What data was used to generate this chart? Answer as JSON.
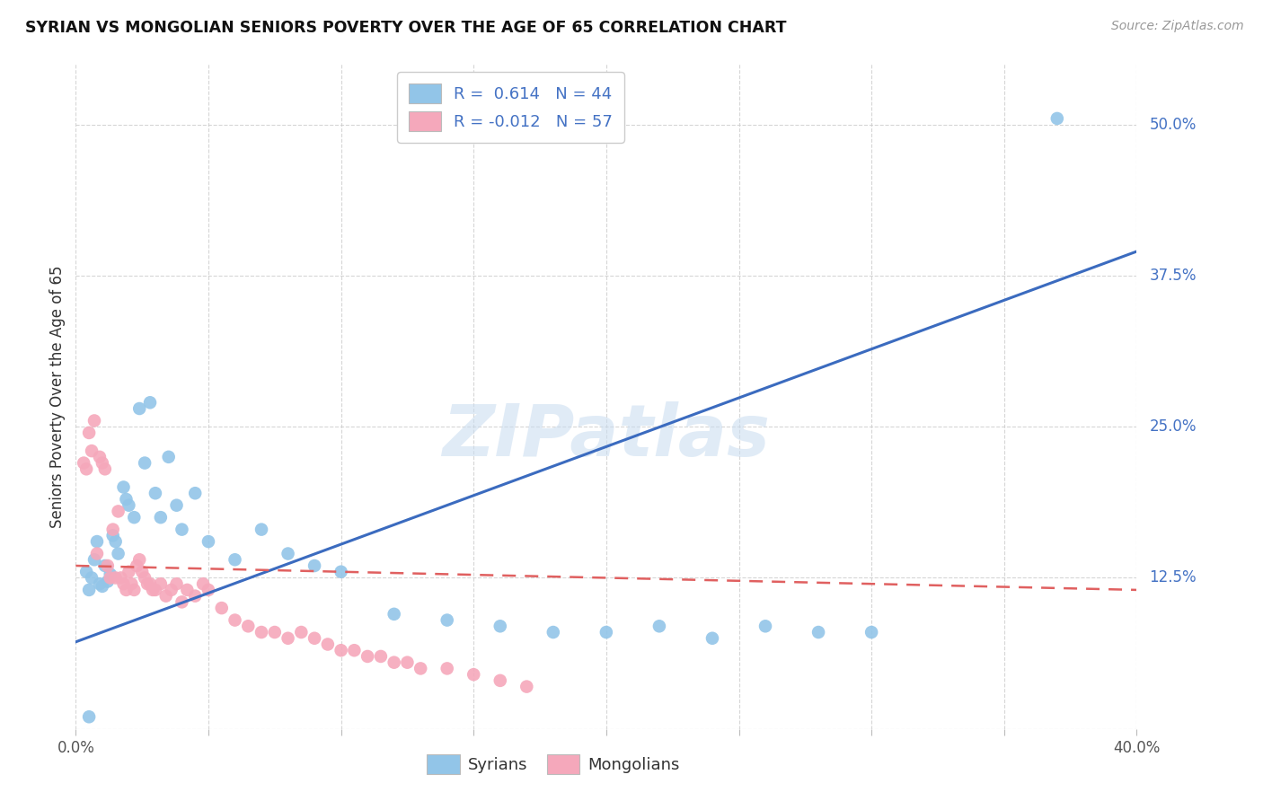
{
  "title": "SYRIAN VS MONGOLIAN SENIORS POVERTY OVER THE AGE OF 65 CORRELATION CHART",
  "source": "Source: ZipAtlas.com",
  "ylabel": "Seniors Poverty Over the Age of 65",
  "xlim": [
    0.0,
    0.4
  ],
  "ylim": [
    0.0,
    0.55
  ],
  "xtick_positions": [
    0.0,
    0.05,
    0.1,
    0.15,
    0.2,
    0.25,
    0.3,
    0.35,
    0.4
  ],
  "xticklabels": [
    "0.0%",
    "",
    "",
    "",
    "",
    "",
    "",
    "",
    "40.0%"
  ],
  "ytick_positions": [
    0.0,
    0.125,
    0.25,
    0.375,
    0.5
  ],
  "yticklabels": [
    "",
    "12.5%",
    "25.0%",
    "37.5%",
    "50.0%"
  ],
  "watermark_text": "ZIPatlas",
  "legend_R1": "R =  0.614   N = 44",
  "legend_R2": "R = -0.012   N = 57",
  "syrians_color": "#92C5E8",
  "mongolians_color": "#F5A8BB",
  "syrians_line_color": "#3B6BBF",
  "mongolians_line_color": "#E06060",
  "background_color": "#FFFFFF",
  "syrians_R": 0.614,
  "mongolians_R": -0.012,
  "syrians_x": [
    0.004,
    0.005,
    0.006,
    0.007,
    0.008,
    0.009,
    0.01,
    0.011,
    0.012,
    0.013,
    0.014,
    0.015,
    0.016,
    0.018,
    0.019,
    0.02,
    0.022,
    0.024,
    0.026,
    0.028,
    0.03,
    0.032,
    0.035,
    0.038,
    0.04,
    0.045,
    0.05,
    0.06,
    0.07,
    0.08,
    0.09,
    0.1,
    0.12,
    0.14,
    0.16,
    0.18,
    0.2,
    0.22,
    0.24,
    0.26,
    0.28,
    0.3,
    0.005,
    0.37
  ],
  "syrians_y": [
    0.13,
    0.115,
    0.125,
    0.14,
    0.155,
    0.12,
    0.118,
    0.135,
    0.122,
    0.128,
    0.16,
    0.155,
    0.145,
    0.2,
    0.19,
    0.185,
    0.175,
    0.265,
    0.22,
    0.27,
    0.195,
    0.175,
    0.225,
    0.185,
    0.165,
    0.195,
    0.155,
    0.14,
    0.165,
    0.145,
    0.135,
    0.13,
    0.095,
    0.09,
    0.085,
    0.08,
    0.08,
    0.085,
    0.075,
    0.085,
    0.08,
    0.08,
    0.01,
    0.505
  ],
  "mongolians_x": [
    0.003,
    0.004,
    0.005,
    0.006,
    0.007,
    0.008,
    0.009,
    0.01,
    0.011,
    0.012,
    0.013,
    0.014,
    0.015,
    0.016,
    0.017,
    0.018,
    0.019,
    0.02,
    0.021,
    0.022,
    0.023,
    0.024,
    0.025,
    0.026,
    0.027,
    0.028,
    0.029,
    0.03,
    0.032,
    0.034,
    0.036,
    0.038,
    0.04,
    0.042,
    0.045,
    0.048,
    0.05,
    0.055,
    0.06,
    0.065,
    0.07,
    0.075,
    0.08,
    0.085,
    0.09,
    0.095,
    0.1,
    0.105,
    0.11,
    0.115,
    0.12,
    0.125,
    0.13,
    0.14,
    0.15,
    0.16,
    0.17
  ],
  "mongolians_y": [
    0.22,
    0.215,
    0.245,
    0.23,
    0.255,
    0.145,
    0.225,
    0.22,
    0.215,
    0.135,
    0.125,
    0.165,
    0.125,
    0.18,
    0.125,
    0.12,
    0.115,
    0.13,
    0.12,
    0.115,
    0.135,
    0.14,
    0.13,
    0.125,
    0.12,
    0.12,
    0.115,
    0.115,
    0.12,
    0.11,
    0.115,
    0.12,
    0.105,
    0.115,
    0.11,
    0.12,
    0.115,
    0.1,
    0.09,
    0.085,
    0.08,
    0.08,
    0.075,
    0.08,
    0.075,
    0.07,
    0.065,
    0.065,
    0.06,
    0.06,
    0.055,
    0.055,
    0.05,
    0.05,
    0.045,
    0.04,
    0.035
  ]
}
